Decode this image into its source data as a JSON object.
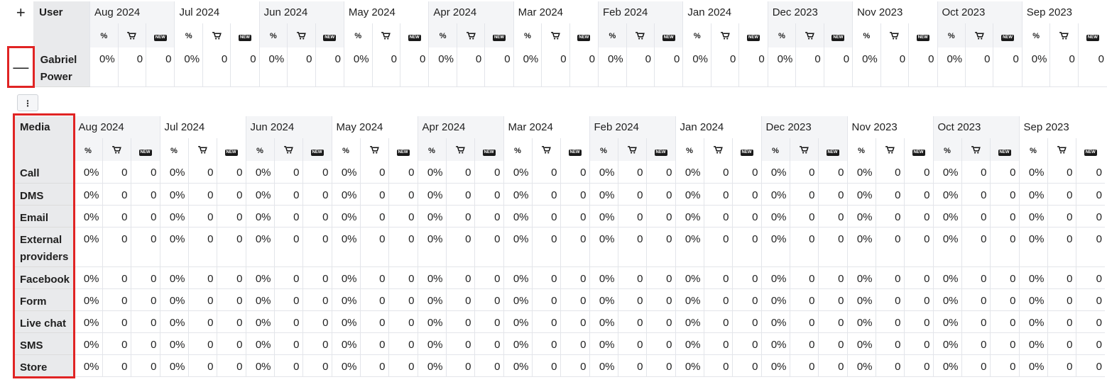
{
  "months": [
    "Aug 2024",
    "Jul 2024",
    "Jun 2024",
    "May 2024",
    "Apr 2024",
    "Mar 2024",
    "Feb 2024",
    "Jan 2024",
    "Dec 2023",
    "Nov 2023",
    "Oct 2023",
    "Sep 2023"
  ],
  "icons": {
    "percent": "percent-icon",
    "cart": "cart-icon",
    "new": "new-badge-icon"
  },
  "new_badge_text": "NEW",
  "percent_glyph": "%",
  "user_table": {
    "corner_label": "User",
    "expand_symbol": "+",
    "collapse_symbol": "—",
    "row": {
      "name_line1": "Gabriel",
      "name_line2": "Power",
      "pct": "0%",
      "cart": "0",
      "new": "0"
    }
  },
  "options_button_label": "⋮",
  "media_table": {
    "corner_label": "Media",
    "rows": [
      {
        "label": "Call",
        "pct": "0%",
        "cart": "0",
        "new": "0"
      },
      {
        "label": "DMS",
        "pct": "0%",
        "cart": "0",
        "new": "0"
      },
      {
        "label": "Email",
        "pct": "0%",
        "cart": "0",
        "new": "0"
      },
      {
        "label": "External providers",
        "pct": "0%",
        "cart": "0",
        "new": "0"
      },
      {
        "label": "Facebook",
        "pct": "0%",
        "cart": "0",
        "new": "0"
      },
      {
        "label": "Form",
        "pct": "0%",
        "cart": "0",
        "new": "0"
      },
      {
        "label": "Live chat",
        "pct": "0%",
        "cart": "0",
        "new": "0"
      },
      {
        "label": "SMS",
        "pct": "0%",
        "cart": "0",
        "new": "0"
      },
      {
        "label": "Store",
        "pct": "0%",
        "cart": "0",
        "new": "0"
      }
    ]
  },
  "colors": {
    "highlight": "#e02424",
    "header_bg": "#e9eaec",
    "month_bg": "#f4f5f7"
  }
}
